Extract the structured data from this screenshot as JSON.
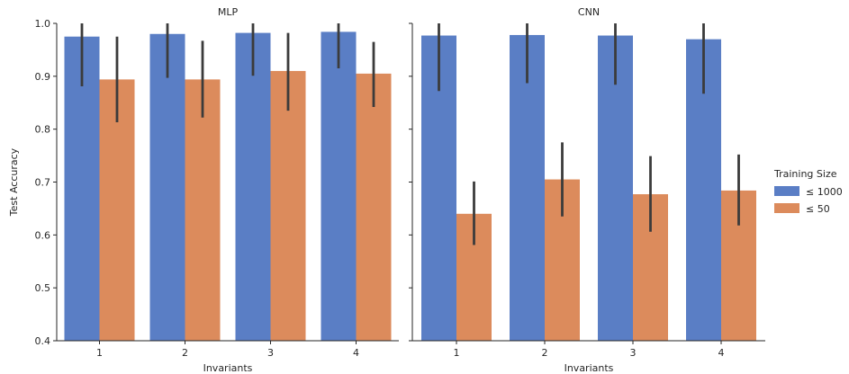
{
  "chart_data": {
    "type": "bar",
    "facets": [
      {
        "title": "MLP",
        "categories": [
          "1",
          "2",
          "3",
          "4"
        ],
        "series": [
          {
            "name": "≤ 1000",
            "values": [
              0.975,
              0.98,
              0.982,
              0.984
            ],
            "err_low": [
              0.881,
              0.897,
              0.901,
              0.915
            ],
            "err_high": [
              1.0,
              1.0,
              1.0,
              1.0
            ]
          },
          {
            "name": "≤ 50",
            "values": [
              0.894,
              0.894,
              0.91,
              0.905
            ],
            "err_low": [
              0.813,
              0.822,
              0.835,
              0.842
            ],
            "err_high": [
              0.975,
              0.967,
              0.982,
              0.965
            ]
          }
        ]
      },
      {
        "title": "CNN",
        "categories": [
          "1",
          "2",
          "3",
          "4"
        ],
        "series": [
          {
            "name": "≤ 1000",
            "values": [
              0.977,
              0.978,
              0.977,
              0.97
            ],
            "err_low": [
              0.872,
              0.887,
              0.884,
              0.867
            ],
            "err_high": [
              1.0,
              1.0,
              1.0,
              1.0
            ]
          },
          {
            "name": "≤ 50",
            "values": [
              0.64,
              0.705,
              0.677,
              0.684
            ],
            "err_low": [
              0.581,
              0.635,
              0.606,
              0.618
            ],
            "err_high": [
              0.701,
              0.775,
              0.749,
              0.752
            ]
          }
        ]
      }
    ],
    "xlabel": "Invariants",
    "ylabel": "Test Accuracy",
    "ylim": [
      0.4,
      1.0
    ],
    "yticks": [
      "0.4",
      "0.5",
      "0.6",
      "0.7",
      "0.8",
      "0.9",
      "1.0"
    ],
    "legend": {
      "title": "Training Size",
      "position": "right"
    },
    "colors": [
      "#5a7ec5",
      "#dc8b5c"
    ],
    "error_bar_color": "#3b3b3b",
    "grid": false
  }
}
